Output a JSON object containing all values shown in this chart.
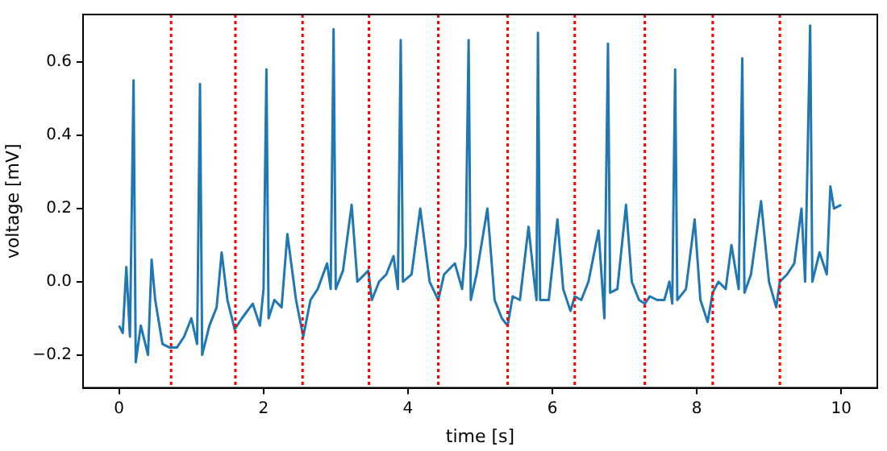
{
  "chart_data": {
    "type": "line",
    "xlabel": "time [s]",
    "ylabel": "voltage [mV]",
    "xlim": [
      -0.5,
      10.5
    ],
    "ylim": [
      -0.29,
      0.73
    ],
    "xticks": [
      0,
      2,
      4,
      6,
      8,
      10
    ],
    "yticks": [
      {
        "value": -0.2,
        "label": "−0.2"
      },
      {
        "value": 0,
        "label": "0.0"
      },
      0.2,
      0.4,
      0.6
    ],
    "grid": false,
    "legend": false,
    "marker": "none",
    "line_style": "solid",
    "series": [
      {
        "color": "#1f77b4",
        "x": [
          0,
          0.05,
          0.1,
          0.15,
          0.2,
          0.23,
          0.3,
          0.4,
          0.45,
          0.5,
          0.6,
          0.7,
          0.8,
          0.9,
          1.0,
          1.08,
          1.12,
          1.15,
          1.25,
          1.35,
          1.42,
          1.5,
          1.6,
          1.7,
          1.85,
          1.95,
          2.0,
          2.04,
          2.07,
          2.15,
          2.25,
          2.33,
          2.45,
          2.55,
          2.65,
          2.75,
          2.88,
          2.93,
          2.97,
          3.0,
          3.1,
          3.22,
          3.3,
          3.45,
          3.5,
          3.6,
          3.7,
          3.8,
          3.86,
          3.9,
          3.93,
          4.05,
          4.17,
          4.3,
          4.42,
          4.5,
          4.65,
          4.75,
          4.8,
          4.84,
          4.87,
          4.95,
          5.1,
          5.2,
          5.3,
          5.38,
          5.45,
          5.55,
          5.67,
          5.75,
          5.78,
          5.8,
          5.83,
          5.95,
          6.07,
          6.15,
          6.25,
          6.31,
          6.4,
          6.5,
          6.64,
          6.72,
          6.77,
          6.8,
          6.9,
          7.02,
          7.1,
          7.2,
          7.28,
          7.35,
          7.45,
          7.55,
          7.62,
          7.66,
          7.7,
          7.73,
          7.85,
          7.97,
          8.05,
          8.15,
          8.22,
          8.3,
          8.4,
          8.48,
          8.58,
          8.63,
          8.66,
          8.75,
          8.89,
          9.0,
          9.1,
          9.15,
          9.25,
          9.35,
          9.45,
          9.5,
          9.57,
          9.6,
          9.7,
          9.8,
          9.85,
          9.9,
          10.0
        ],
        "values": [
          -0.12,
          -0.14,
          0.04,
          -0.15,
          0.55,
          -0.22,
          -0.12,
          -0.2,
          0.06,
          -0.05,
          -0.17,
          -0.18,
          -0.18,
          -0.15,
          -0.1,
          -0.17,
          0.54,
          -0.2,
          -0.12,
          -0.07,
          0.08,
          -0.05,
          -0.13,
          -0.1,
          -0.06,
          -0.12,
          -0.02,
          0.58,
          -0.1,
          -0.05,
          -0.07,
          0.13,
          -0.05,
          -0.15,
          -0.05,
          -0.02,
          0.05,
          -0.02,
          0.69,
          -0.02,
          0.03,
          0.21,
          0.0,
          0.03,
          -0.05,
          0.0,
          0.02,
          0.07,
          -0.02,
          0.66,
          0.0,
          0.02,
          0.2,
          0.0,
          -0.05,
          0.02,
          0.05,
          -0.02,
          0.1,
          0.66,
          -0.05,
          0.02,
          0.2,
          -0.05,
          -0.1,
          -0.12,
          -0.04,
          -0.05,
          0.15,
          0.0,
          -0.05,
          0.68,
          -0.05,
          -0.05,
          0.17,
          -0.02,
          -0.08,
          -0.04,
          -0.05,
          0.0,
          0.14,
          -0.1,
          0.65,
          -0.03,
          -0.02,
          0.21,
          0.0,
          -0.05,
          -0.06,
          -0.04,
          -0.05,
          -0.05,
          0.0,
          -0.06,
          0.58,
          -0.05,
          -0.02,
          0.17,
          -0.05,
          -0.11,
          -0.03,
          0.0,
          -0.02,
          0.1,
          -0.02,
          0.61,
          -0.03,
          0.02,
          0.22,
          0.0,
          -0.07,
          0.0,
          0.02,
          0.05,
          0.2,
          0.0,
          0.7,
          0.0,
          0.08,
          0.02,
          0.26,
          0.2,
          0.21
        ]
      }
    ],
    "ref_lines": [
      {
        "axis": "x",
        "value": 0.72,
        "color": "#ff0000",
        "line_style": "dotted"
      },
      {
        "axis": "x",
        "value": 1.61,
        "color": "#ff0000",
        "line_style": "dotted"
      },
      {
        "axis": "x",
        "value": 2.54,
        "color": "#ff0000",
        "line_style": "dotted"
      },
      {
        "axis": "x",
        "value": 3.46,
        "color": "#ff0000",
        "line_style": "dotted"
      },
      {
        "axis": "x",
        "value": 4.42,
        "color": "#ff0000",
        "line_style": "dotted"
      },
      {
        "axis": "x",
        "value": 5.38,
        "color": "#ff0000",
        "line_style": "dotted"
      },
      {
        "axis": "x",
        "value": 6.31,
        "color": "#ff0000",
        "line_style": "dotted"
      },
      {
        "axis": "x",
        "value": 7.28,
        "color": "#ff0000",
        "line_style": "dotted"
      },
      {
        "axis": "x",
        "value": 8.22,
        "color": "#ff0000",
        "line_style": "dotted"
      },
      {
        "axis": "x",
        "value": 9.15,
        "color": "#ff0000",
        "line_style": "dotted"
      }
    ]
  }
}
